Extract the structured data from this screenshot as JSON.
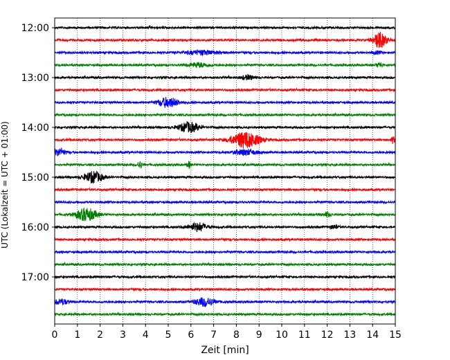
{
  "chart_data": {
    "type": "line",
    "title": "",
    "xlabel": "Zeit  [min]",
    "ylabel": "UTC (Lokalzeit = UTC + 01:00)",
    "xlim": [
      0,
      15
    ],
    "x_ticks": [
      0,
      1,
      2,
      3,
      4,
      5,
      6,
      7,
      8,
      9,
      10,
      11,
      12,
      13,
      14,
      15
    ],
    "y_ticks": [
      "12:00",
      "13:00",
      "14:00",
      "15:00",
      "16:00",
      "17:00"
    ],
    "grid": "vertical dotted",
    "line_colors": [
      "#000000",
      "#ff0000",
      "#0000ff",
      "#008000"
    ],
    "traces": [
      {
        "start": "12:00",
        "color": "#000000",
        "events": []
      },
      {
        "start": "12:15",
        "color": "#ff0000",
        "events": [
          {
            "t": 14.3,
            "amp": 11,
            "dur": 0.6
          }
        ]
      },
      {
        "start": "12:30",
        "color": "#0000ff",
        "events": [
          {
            "t": 6.5,
            "amp": 3,
            "dur": 1.5
          },
          {
            "t": 14.2,
            "amp": 2,
            "dur": 0.4
          }
        ]
      },
      {
        "start": "12:45",
        "color": "#008000",
        "events": [
          {
            "t": 6.3,
            "amp": 3,
            "dur": 1.0
          },
          {
            "t": 14.3,
            "amp": 3,
            "dur": 0.3
          }
        ]
      },
      {
        "start": "13:00",
        "color": "#000000",
        "events": [
          {
            "t": 8.5,
            "amp": 3,
            "dur": 0.6
          }
        ]
      },
      {
        "start": "13:15",
        "color": "#ff0000",
        "events": []
      },
      {
        "start": "13:30",
        "color": "#0000ff",
        "events": [
          {
            "t": 5.0,
            "amp": 7,
            "dur": 0.9
          }
        ]
      },
      {
        "start": "13:45",
        "color": "#008000",
        "events": []
      },
      {
        "start": "14:00",
        "color": "#000000",
        "events": [
          {
            "t": 5.9,
            "amp": 7,
            "dur": 0.9
          }
        ]
      },
      {
        "start": "14:15",
        "color": "#ff0000",
        "events": [
          {
            "t": 8.4,
            "amp": 12,
            "dur": 1.2
          },
          {
            "t": 14.9,
            "amp": 5,
            "dur": 0.15
          }
        ]
      },
      {
        "start": "14:30",
        "color": "#0000ff",
        "events": [
          {
            "t": 0.2,
            "amp": 5,
            "dur": 0.5
          },
          {
            "t": 8.4,
            "amp": 4,
            "dur": 1.0
          }
        ]
      },
      {
        "start": "14:45",
        "color": "#008000",
        "events": [
          {
            "t": 3.75,
            "amp": 5,
            "dur": 0.2
          },
          {
            "t": 5.9,
            "amp": 5,
            "dur": 0.15
          }
        ]
      },
      {
        "start": "15:00",
        "color": "#000000",
        "events": [
          {
            "t": 1.7,
            "amp": 8,
            "dur": 0.8
          }
        ]
      },
      {
        "start": "15:15",
        "color": "#ff0000",
        "events": []
      },
      {
        "start": "15:30",
        "color": "#0000ff",
        "events": []
      },
      {
        "start": "15:45",
        "color": "#008000",
        "events": [
          {
            "t": 1.4,
            "amp": 9,
            "dur": 0.9
          },
          {
            "t": 12.0,
            "amp": 3,
            "dur": 0.3
          }
        ]
      },
      {
        "start": "16:00",
        "color": "#000000",
        "events": [
          {
            "t": 6.3,
            "amp": 6,
            "dur": 0.8
          },
          {
            "t": 12.3,
            "amp": 3,
            "dur": 0.3
          }
        ]
      },
      {
        "start": "16:15",
        "color": "#ff0000",
        "events": []
      },
      {
        "start": "16:30",
        "color": "#0000ff",
        "events": []
      },
      {
        "start": "16:45",
        "color": "#008000",
        "events": []
      },
      {
        "start": "17:00",
        "color": "#000000",
        "events": []
      },
      {
        "start": "17:15",
        "color": "#ff0000",
        "events": []
      },
      {
        "start": "17:30",
        "color": "#0000ff",
        "events": [
          {
            "t": 0.3,
            "amp": 4,
            "dur": 0.6
          },
          {
            "t": 6.6,
            "amp": 6,
            "dur": 0.9
          }
        ]
      },
      {
        "start": "17:45",
        "color": "#008000",
        "events": []
      }
    ]
  }
}
